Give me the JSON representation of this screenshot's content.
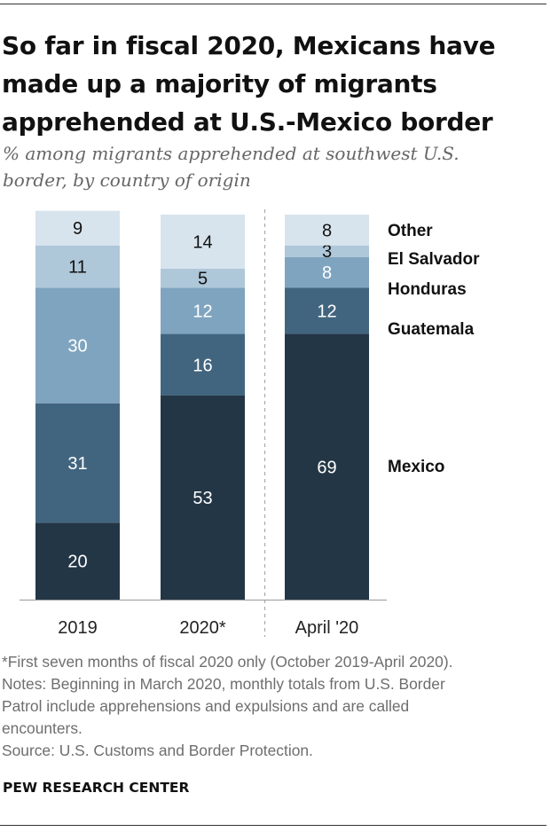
{
  "header": {
    "title_lines": [
      "So far in fiscal 2020, Mexicans have",
      "made up a majority of migrants",
      "apprehended at U.S.-Mexico border"
    ],
    "subtitle_lines": [
      "% among migrants apprehended at southwest U.S.",
      "border, by country of origin"
    ]
  },
  "chart_data": {
    "type": "bar",
    "stacked": true,
    "orientation": "vertical",
    "categories": [
      "2019",
      "2020*",
      "April '20"
    ],
    "series": [
      {
        "name": "Mexico",
        "values": [
          20,
          53,
          69
        ],
        "color": "#233646"
      },
      {
        "name": "Guatemala",
        "values": [
          31,
          16,
          12
        ],
        "color": "#42657f"
      },
      {
        "name": "Honduras",
        "values": [
          30,
          12,
          8
        ],
        "color": "#7fa4bf"
      },
      {
        "name": "El Salvador",
        "values": [
          11,
          5,
          3
        ],
        "color": "#aec7d9"
      },
      {
        "name": "Other",
        "values": [
          9,
          14,
          8
        ],
        "color": "#d7e4ee"
      }
    ],
    "legend_placement": "right",
    "ylim": [
      0,
      100
    ],
    "separator_after_category": "2020*",
    "title": "So far in fiscal 2020, Mexicans have made up a majority of migrants apprehended at U.S.-Mexico border",
    "ylabel": "% among migrants apprehended at southwest U.S. border, by country of origin"
  },
  "footer": {
    "note_lines": [
      "*First seven months of fiscal 2020 only (October 2019-April 2020).",
      "Notes: Beginning in March 2020, monthly totals from U.S. Border",
      "Patrol include apprehensions and expulsions and are called",
      "encounters.",
      "Source: U.S. Customs and Border Protection."
    ],
    "brand": "PEW RESEARCH CENTER"
  },
  "colors": {
    "label_light": "#ffffff",
    "label_dark": "#111111",
    "axis": "#999999",
    "separator": "#aaaaaa"
  }
}
